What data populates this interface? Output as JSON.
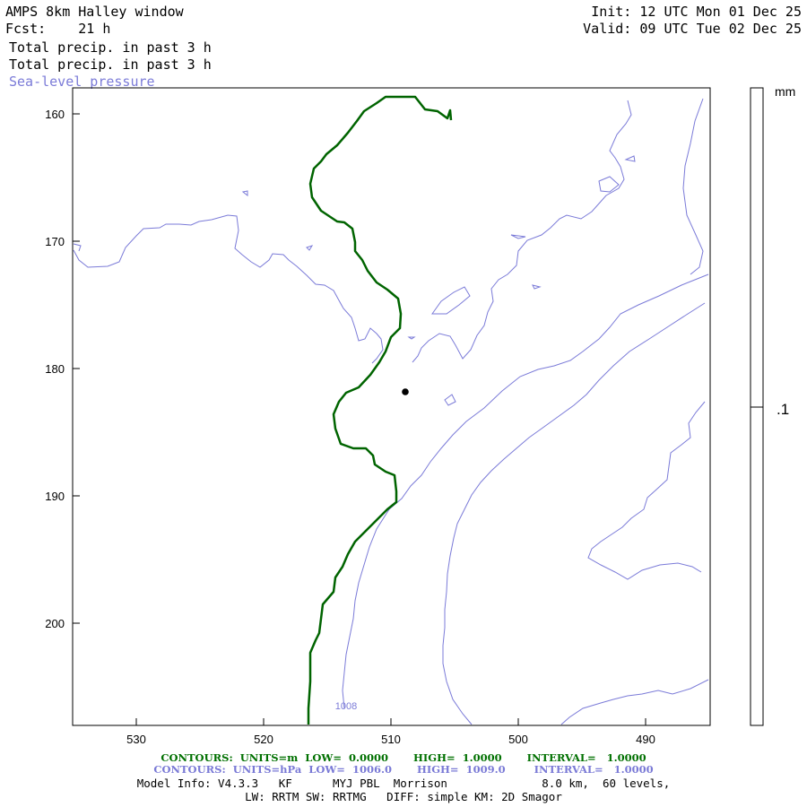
{
  "header": {
    "model_title": "AMPS 8km Halley window",
    "forecast_label": "Fcst:",
    "forecast_value": "21 h",
    "init_label": "Init:",
    "init_value": "12 UTC Mon 01 Dec 25",
    "valid_label": "Valid:",
    "valid_value": "09 UTC Tue 02 Dec 25"
  },
  "fields": {
    "field1": "Total precip. in past 3 h",
    "field2": "Total precip. in past 3 h",
    "field3": "Sea-level pressure"
  },
  "map": {
    "x_ticks": [
      "530",
      "520",
      "510",
      "500",
      "490"
    ],
    "y_ticks": [
      "160",
      "170",
      "180",
      "190",
      "200"
    ],
    "station_marker": "Halley station dot",
    "pressure_label": "1008",
    "colors": {
      "terrain_contour": "#006400",
      "pressure_contour": "#7b7bd8",
      "frame": "#000000"
    }
  },
  "colorbar": {
    "units": "mm",
    "level": ".1"
  },
  "footer": {
    "terrain_contours": "CONTOURS:  UNITS=m  LOW=  0.0000       HIGH=  1.0000       INTERVAL=   1.0000",
    "pressure_contours": "CONTOURS:  UNITS=hPa  LOW=  1006.0       HIGH=  1009.0        INTERVAL=   1.0000",
    "model_info": "Model Info: V4.3.3   KF      MYJ PBL  Morrison              8.0 km,  60 levels,",
    "physics_info": "LW: RRTM SW: RRTMG   DIFF: simple KM: 2D Smagor"
  }
}
